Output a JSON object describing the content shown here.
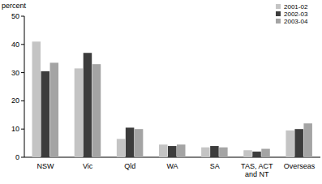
{
  "chart_data": {
    "type": "bar",
    "y_label": "percent",
    "categories": [
      "NSW",
      "Vic",
      "Qld",
      "WA",
      "SA",
      "TAS, ACT and NT",
      "Overseas"
    ],
    "series": [
      {
        "name": "2001-02",
        "color": "#c4c4c4",
        "values": [
          41,
          31.5,
          6.5,
          4.5,
          3.5,
          2.5,
          9.5
        ]
      },
      {
        "name": "2002-03",
        "color": "#3c3c3c",
        "values": [
          30.5,
          37,
          10.5,
          4,
          4,
          2,
          10
        ]
      },
      {
        "name": "2003-04",
        "color": "#a4a4a4",
        "values": [
          33.5,
          33,
          10,
          4.5,
          3.5,
          3,
          12
        ]
      }
    ],
    "ylim": [
      0,
      50
    ],
    "yticks": [
      0,
      10,
      20,
      30,
      40,
      50
    ],
    "grid": false,
    "legend": "top-right"
  }
}
